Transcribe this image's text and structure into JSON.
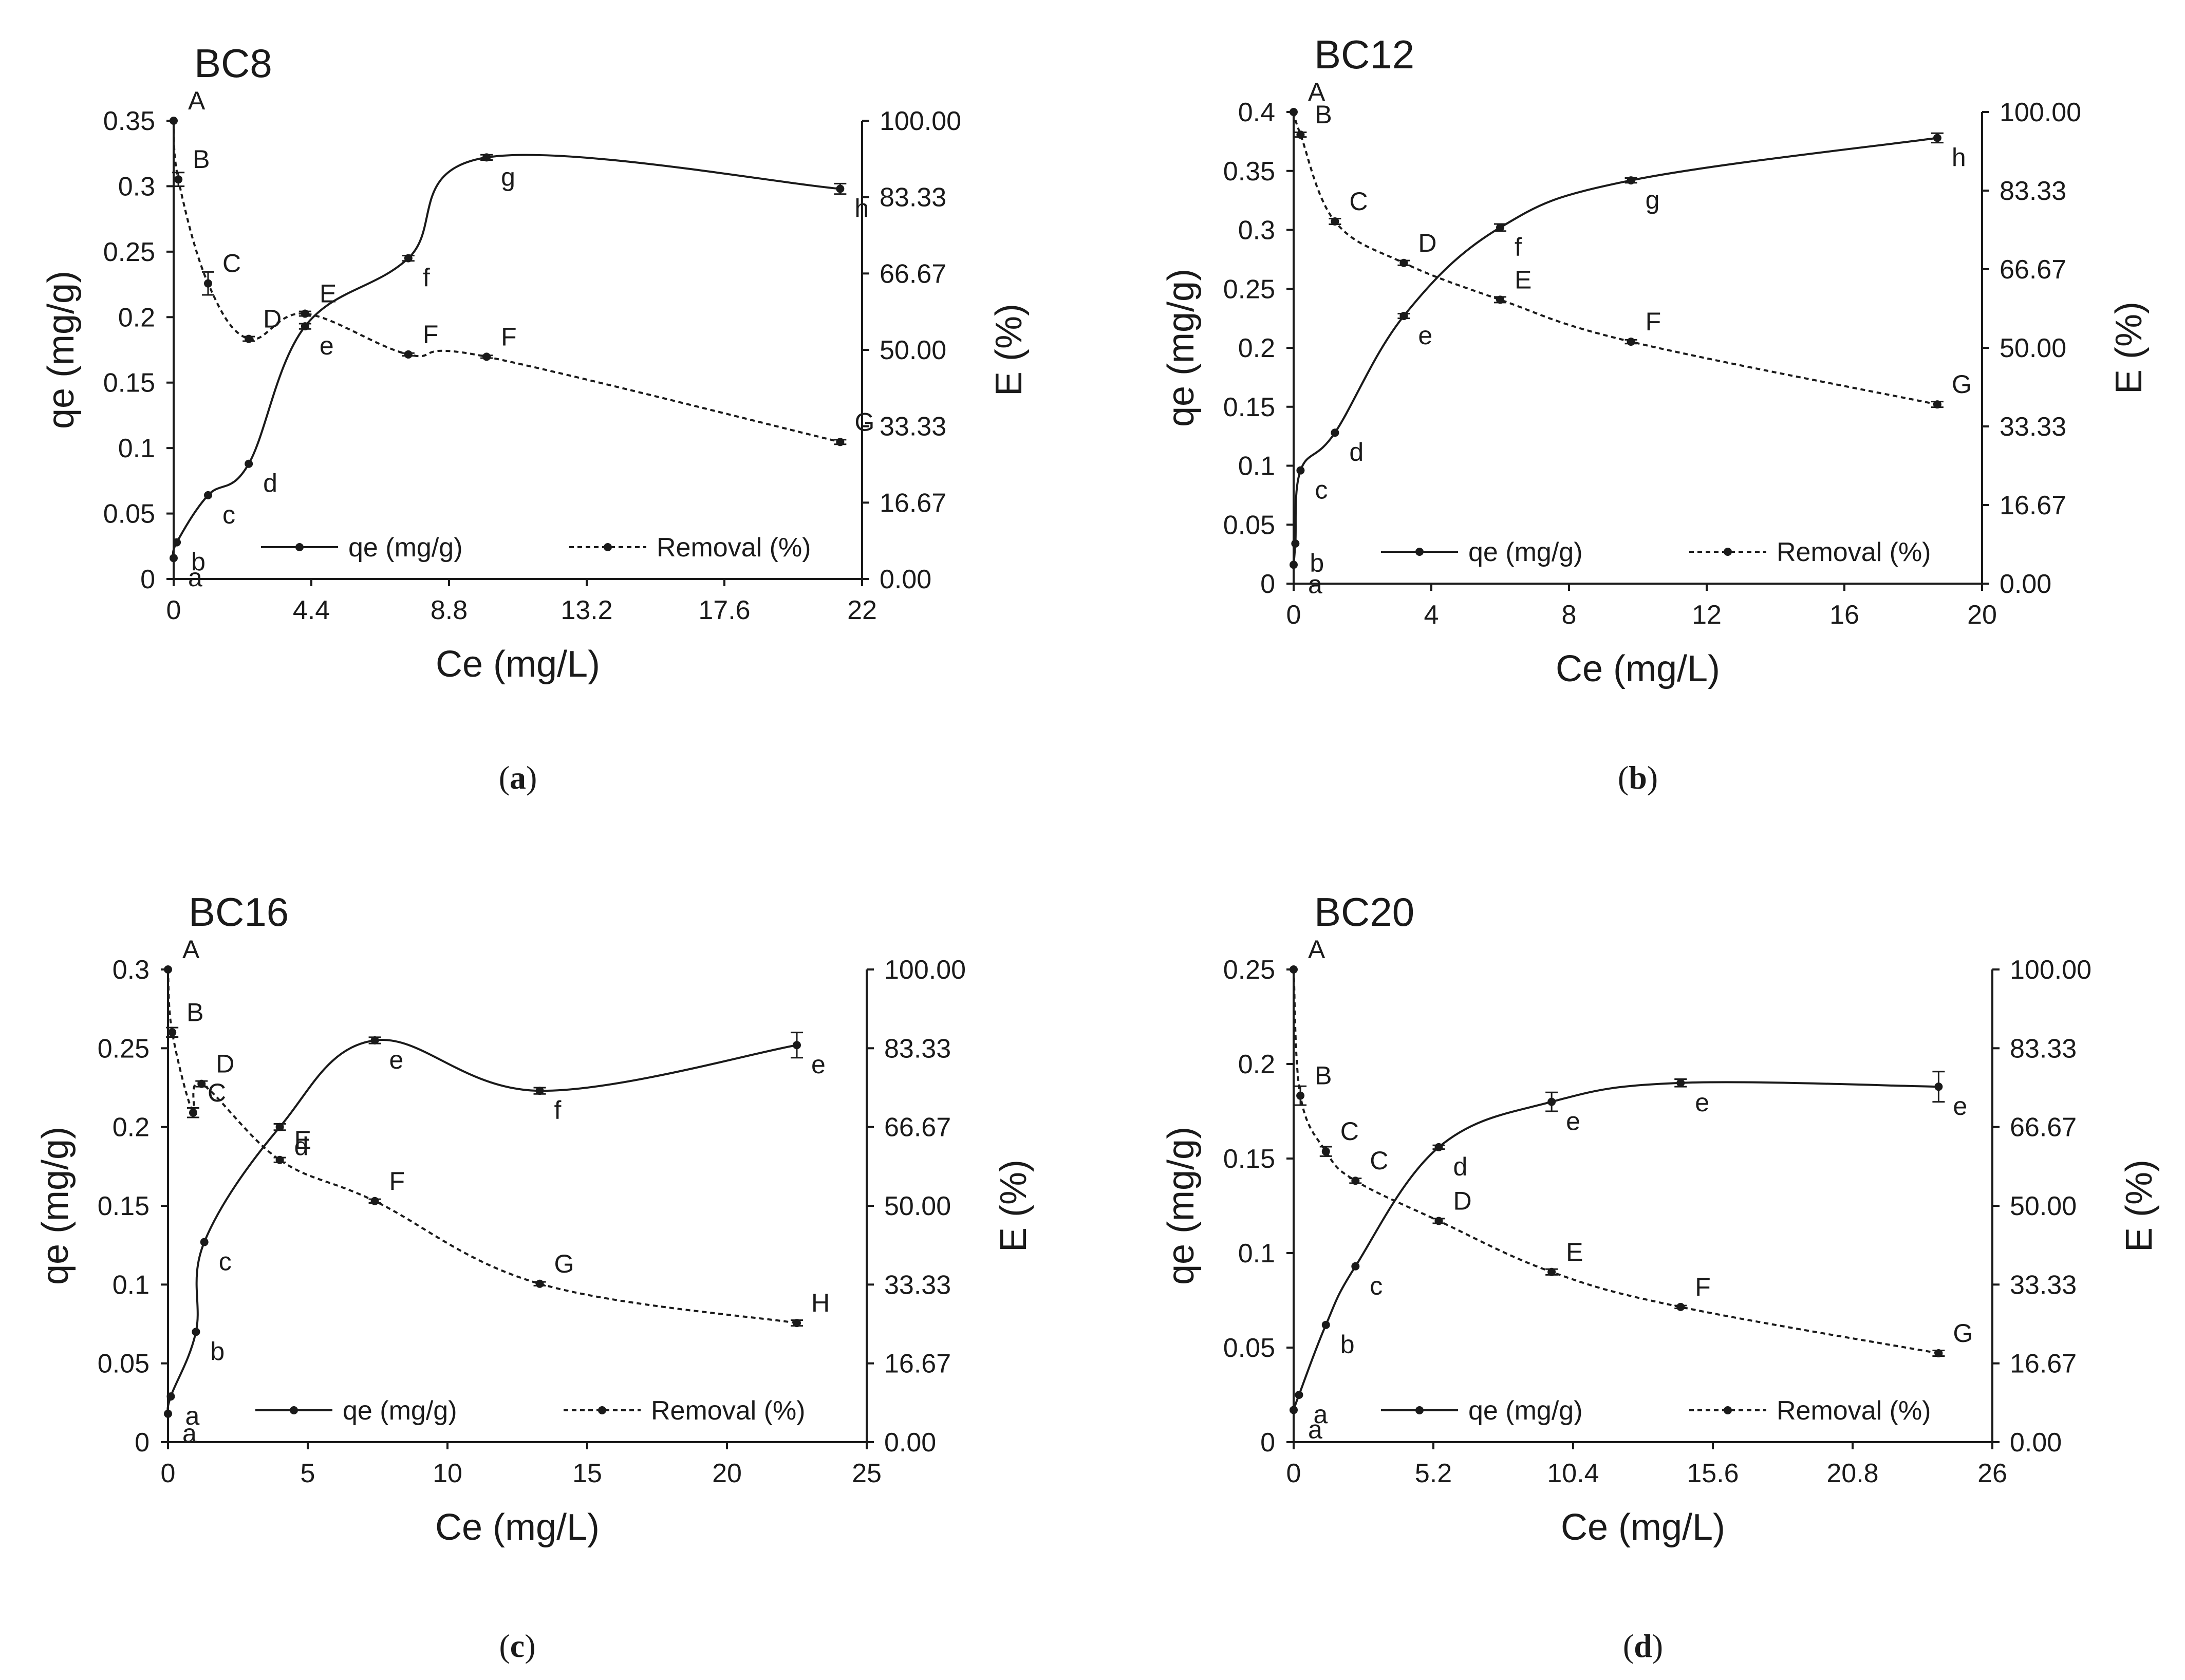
{
  "figure": {
    "chart_data": [
      {
        "type": "line",
        "panel_title": "BC8",
        "caption": "a",
        "xlabel": "Ce (mg/L)",
        "ylabel_left": "qe (mg/g)",
        "ylabel_right": "E (%)",
        "xlim": [
          0,
          22
        ],
        "ylim_left": [
          0,
          0.35
        ],
        "ylim_right": [
          0,
          100
        ],
        "x_ticks": [
          "0",
          "4.4",
          "8.8",
          "13.2",
          "17.6",
          "22"
        ],
        "y_left_ticks": [
          "0",
          "0.05",
          "0.1",
          "0.15",
          "0.2",
          "0.25",
          "0.3",
          "0.35"
        ],
        "y_right_ticks": [
          "0.00",
          "16.67",
          "33.33",
          "50.00",
          "66.67",
          "83.33",
          "100.00"
        ],
        "legend": [
          "qe (mg/g)",
          "Removal (%)"
        ],
        "series": [
          {
            "name": "qe (mg/g)",
            "axis": "left",
            "style": "solid",
            "x": [
              0.0,
              0.1,
              1.1,
              2.4,
              4.2,
              7.5,
              10.0,
              21.3
            ],
            "y": [
              0.016,
              0.028,
              0.064,
              0.088,
              0.193,
              0.245,
              0.322,
              0.298
            ],
            "labels": [
              "a",
              "b",
              "c",
              "d",
              "e",
              "f",
              "g",
              "h"
            ],
            "err": [
              0,
              0,
              0,
              0,
              0.002,
              0.002,
              0.002,
              0.004
            ]
          },
          {
            "name": "Removal (%)",
            "axis": "right",
            "style": "dashed",
            "x": [
              0.0,
              0.15,
              1.1,
              2.4,
              4.2,
              7.5,
              10.0,
              21.3
            ],
            "y": [
              100.0,
              87.2,
              64.5,
              52.4,
              57.9,
              49.0,
              48.5,
              29.9
            ],
            "labels": [
              "A",
              "B",
              "C",
              "D",
              "E",
              "F",
              "F",
              "G"
            ],
            "err": [
              0,
              1.5,
              2.5,
              0.5,
              0.5,
              0.3,
              0.3,
              0.5
            ]
          }
        ]
      },
      {
        "type": "line",
        "panel_title": "BC12",
        "caption": "b",
        "xlabel": "Ce (mg/L)",
        "ylabel_left": "qe (mg/g)",
        "ylabel_right": "E (%)",
        "xlim": [
          0,
          20
        ],
        "ylim_left": [
          0,
          0.4
        ],
        "ylim_right": [
          0,
          100
        ],
        "x_ticks": [
          "0",
          "4",
          "8",
          "12",
          "16",
          "20"
        ],
        "y_left_ticks": [
          "0",
          "0.05",
          "0.1",
          "0.15",
          "0.2",
          "0.25",
          "0.3",
          "0.35",
          "0.4"
        ],
        "y_right_ticks": [
          "0.00",
          "16.67",
          "33.33",
          "50.00",
          "66.67",
          "83.33",
          "100.00"
        ],
        "legend": [
          "qe (mg/g)",
          "Removal (%)"
        ],
        "series": [
          {
            "name": "qe (mg/g)",
            "axis": "left",
            "style": "solid",
            "x": [
              0.0,
              0.05,
              0.2,
              1.2,
              3.2,
              6.0,
              9.8,
              18.7
            ],
            "y": [
              0.016,
              0.034,
              0.096,
              0.128,
              0.227,
              0.302,
              0.342,
              0.378
            ],
            "labels": [
              "a",
              "b",
              "c",
              "d",
              "e",
              "f",
              "g",
              "h"
            ],
            "err": [
              0,
              0,
              0,
              0,
              0.002,
              0.003,
              0.002,
              0.004
            ]
          },
          {
            "name": "Removal (%)",
            "axis": "right",
            "style": "dashed",
            "x": [
              0.0,
              0.2,
              1.2,
              3.2,
              6.0,
              9.8,
              18.7
            ],
            "y": [
              100.0,
              95.2,
              76.8,
              68.0,
              60.2,
              51.3,
              38.0
            ],
            "labels": [
              "A",
              "B",
              "C",
              "D",
              "E",
              "F",
              "G"
            ],
            "err": [
              0,
              0.5,
              0.6,
              0.5,
              0.6,
              0.4,
              0.6
            ]
          }
        ]
      },
      {
        "type": "line",
        "panel_title": "BC16",
        "caption": "c",
        "xlabel": "Ce (mg/L)",
        "ylabel_left": "qe (mg/g)",
        "ylabel_right": "E (%)",
        "xlim": [
          0,
          25
        ],
        "ylim_left": [
          0,
          0.3
        ],
        "ylim_right": [
          0,
          100
        ],
        "x_ticks": [
          "0",
          "5",
          "10",
          "15",
          "20",
          "25"
        ],
        "y_left_ticks": [
          "0",
          "0.05",
          "0.1",
          "0.15",
          "0.2",
          "0.25",
          "0.3"
        ],
        "y_right_ticks": [
          "0.00",
          "16.67",
          "33.33",
          "50.00",
          "66.67",
          "83.33",
          "100.00"
        ],
        "legend": [
          "qe (mg/g)",
          "Removal (%)"
        ],
        "series": [
          {
            "name": "qe (mg/g)",
            "axis": "left",
            "style": "solid",
            "x": [
              0.0,
              0.1,
              1.0,
              1.3,
              4.0,
              7.4,
              13.3,
              22.5
            ],
            "y": [
              0.018,
              0.029,
              0.07,
              0.127,
              0.2,
              0.255,
              0.223,
              0.252
            ],
            "labels": [
              "a",
              "a",
              "b",
              "c",
              "d",
              "e",
              "f",
              "e"
            ],
            "err": [
              0,
              0,
              0,
              0,
              0.002,
              0.002,
              0.002,
              0.008
            ]
          },
          {
            "name": "Removal (%)",
            "axis": "right",
            "style": "dashed",
            "x": [
              0.0,
              0.15,
              0.9,
              1.2,
              4.0,
              7.4,
              13.3,
              22.5
            ],
            "y": [
              100.0,
              86.7,
              69.7,
              75.8,
              59.7,
              51.0,
              33.5,
              25.2
            ],
            "labels": [
              "A",
              "B",
              "C",
              "D",
              "E",
              "F",
              "G",
              "H"
            ],
            "err": [
              0,
              1.0,
              1.0,
              0.6,
              0.5,
              0.4,
              0.4,
              0.6
            ]
          }
        ]
      },
      {
        "type": "line",
        "panel_title": "BC20",
        "caption": "d",
        "xlabel": "Ce (mg/L)",
        "ylabel_left": "qe (mg/g)",
        "ylabel_right": "E (%)",
        "xlim": [
          0,
          26
        ],
        "ylim_left": [
          0,
          0.25
        ],
        "ylim_right": [
          0,
          100
        ],
        "x_ticks": [
          "0",
          "5.2",
          "10.4",
          "15.6",
          "20.8",
          "26"
        ],
        "y_left_ticks": [
          "0",
          "0.05",
          "0.1",
          "0.15",
          "0.2",
          "0.25"
        ],
        "y_right_ticks": [
          "0.00",
          "16.67",
          "33.33",
          "50.00",
          "66.67",
          "83.33",
          "100.00"
        ],
        "legend": [
          "qe (mg/g)",
          "Removal (%)"
        ],
        "series": [
          {
            "name": "qe (mg/g)",
            "axis": "left",
            "style": "solid",
            "x": [
              0.0,
              0.2,
              1.2,
              2.3,
              5.4,
              9.6,
              14.4,
              24.0
            ],
            "y": [
              0.017,
              0.025,
              0.062,
              0.093,
              0.156,
              0.18,
              0.19,
              0.188
            ],
            "labels": [
              "a",
              "a",
              "b",
              "c",
              "d",
              "e",
              "e",
              "e"
            ],
            "err": [
              0,
              0,
              0,
              0,
              0.001,
              0.005,
              0.002,
              0.008
            ]
          },
          {
            "name": "Removal (%)",
            "axis": "right",
            "style": "dashed",
            "x": [
              0.0,
              0.25,
              1.2,
              2.3,
              5.4,
              9.6,
              14.4,
              24.0
            ],
            "y": [
              100.0,
              73.3,
              61.5,
              55.3,
              46.8,
              36.0,
              28.6,
              18.8
            ],
            "labels": [
              "A",
              "B",
              "C",
              "C",
              "D",
              "E",
              "F",
              "G"
            ],
            "err": [
              0,
              2.0,
              1.0,
              0.5,
              0.5,
              0.6,
              0.3,
              0.6
            ]
          }
        ]
      }
    ]
  }
}
